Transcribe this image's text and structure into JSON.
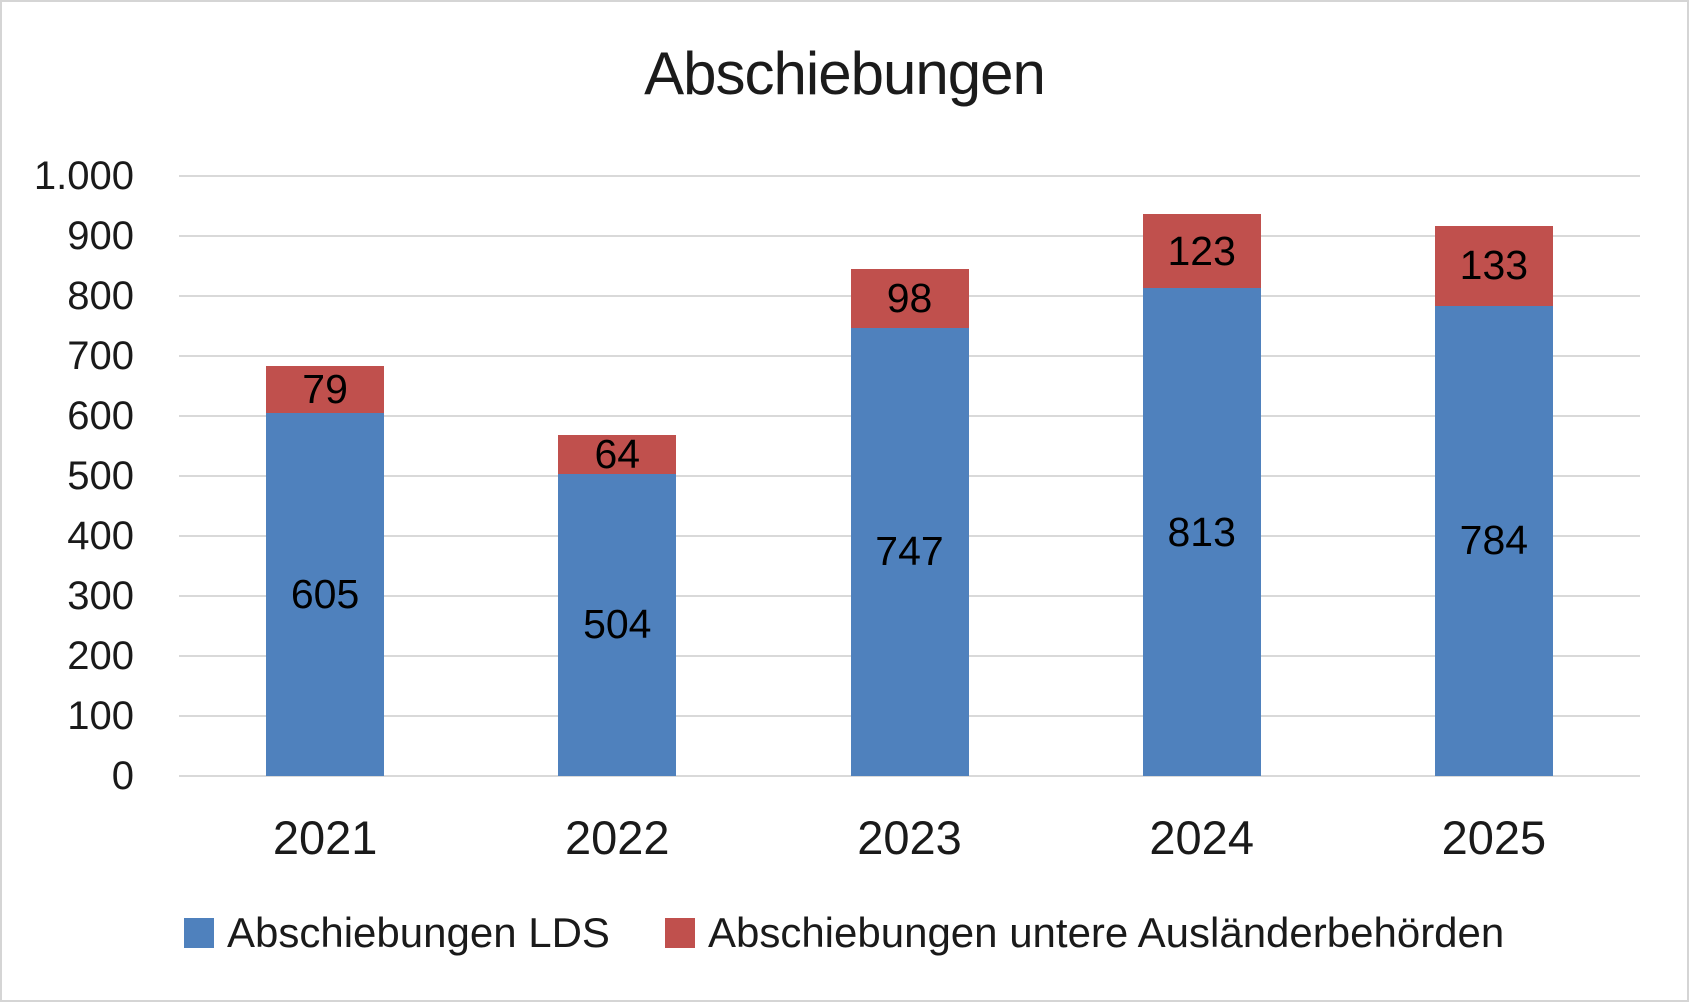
{
  "chart_data": {
    "type": "bar",
    "stacked": true,
    "title": "Abschiebungen",
    "categories": [
      "2021",
      "2022",
      "2023",
      "2024",
      "2025"
    ],
    "series": [
      {
        "name": "Abschiebungen LDS",
        "color": "#4F81BD",
        "values": [
          605,
          504,
          747,
          813,
          784
        ]
      },
      {
        "name": "Abschiebungen untere Ausländerbehörden",
        "color": "#C0504D",
        "values": [
          79,
          64,
          98,
          123,
          133
        ]
      }
    ],
    "stack_totals": [
      684,
      568,
      845,
      936,
      917
    ],
    "ylim": [
      0,
      1000
    ],
    "ytick_interval": 100,
    "ytick_labels": [
      "0",
      "100",
      "200",
      "300",
      "400",
      "500",
      "600",
      "700",
      "800",
      "900",
      "1.000"
    ],
    "xlabel": "",
    "ylabel": "",
    "grid": "horizontal",
    "gridline_color": "#D9D9D9",
    "legend_position": "bottom",
    "data_labels": "inside-center",
    "frame_border_color": "#D5D5D5",
    "background_color": "#FFFFFF"
  }
}
